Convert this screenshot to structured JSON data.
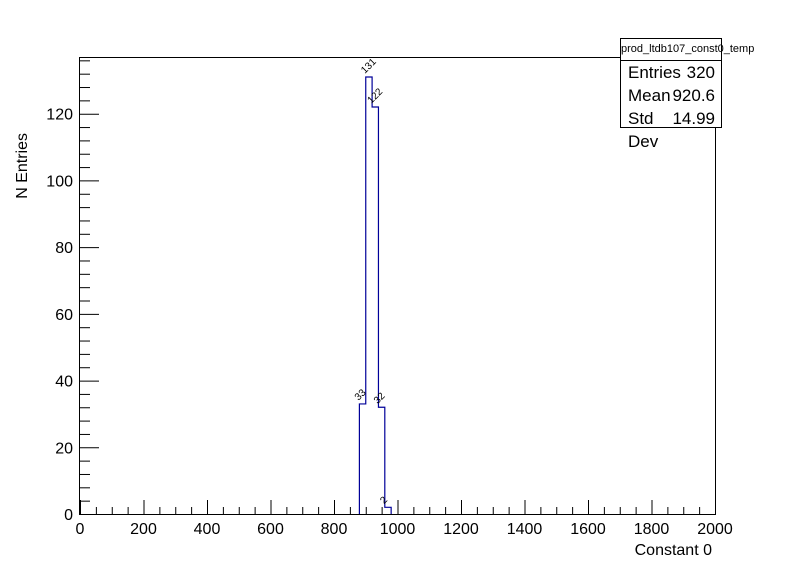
{
  "chart_data": {
    "type": "histogram",
    "x_label": "Constant 0",
    "y_label": "N Entries",
    "x_range": [
      0,
      2000
    ],
    "y_range": [
      0,
      137
    ],
    "x_ticks": [
      0,
      200,
      400,
      600,
      800,
      1000,
      1200,
      1400,
      1600,
      1800,
      2000
    ],
    "y_ticks": [
      0,
      20,
      40,
      60,
      80,
      100,
      120
    ],
    "bin_width": 20,
    "bins": [
      {
        "x_low": 880,
        "x_high": 900,
        "count": 33
      },
      {
        "x_low": 900,
        "x_high": 920,
        "count": 131
      },
      {
        "x_low": 920,
        "x_high": 940,
        "count": 122
      },
      {
        "x_low": 940,
        "x_high": 960,
        "count": 32
      },
      {
        "x_low": 960,
        "x_high": 980,
        "count": 2
      }
    ],
    "line_color": "#000099",
    "grid": false
  },
  "stats": {
    "title": "prod_ltdb107_const0_temp",
    "rows": [
      {
        "label": "Entries",
        "value": "320"
      },
      {
        "label": "Mean",
        "value": "920.6"
      },
      {
        "label": "Std Dev",
        "value": "14.99"
      }
    ]
  }
}
